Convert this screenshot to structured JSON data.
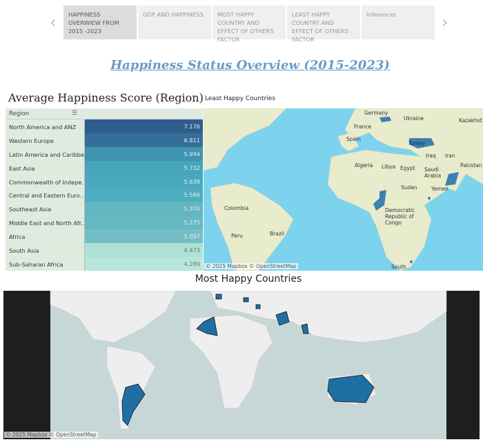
{
  "nav": {
    "prev": "‹",
    "next": "›",
    "tabs": [
      {
        "label": "HAPPINESS OVERWIEW FROM 2015 -2023",
        "active": true
      },
      {
        "label": "GDP AND HAPPINESS",
        "active": false
      },
      {
        "label": "MOST HAPPY COUNTRY AND EFFECT OF OTHERS FACTOR",
        "active": false
      },
      {
        "label": "LEAST HAPPY COUNTRY AND EFFECT OF OTHERS FACTOR",
        "active": false
      },
      {
        "label": "Inferences",
        "active": false
      }
    ]
  },
  "page_title": "Happiness Status Overview (2015-2023)",
  "region_table": {
    "title": "Average Happiness Score (Region)",
    "column_header": "Region",
    "rows": [
      {
        "region": "North America and ANZ",
        "score": "7.176",
        "color": "#2f5d8c"
      },
      {
        "region": "Western Europe",
        "score": "6.811",
        "color": "#356e99"
      },
      {
        "region": "Latin America and Caribbe..",
        "score": "5.994",
        "color": "#3f94b0"
      },
      {
        "region": "East Asia",
        "score": "5.732",
        "color": "#47a5bc"
      },
      {
        "region": "Commonwealth of Indepe..",
        "score": "5.639",
        "color": "#4aa9be"
      },
      {
        "region": "Central and Eastern Euro..",
        "score": "5.586",
        "color": "#4eacbf"
      },
      {
        "region": "Southeast Asia",
        "score": "5.370",
        "color": "#62b5c1"
      },
      {
        "region": "Middle East and North Afr..",
        "score": "5.275",
        "color": "#66b8c3"
      },
      {
        "region": "Africa",
        "score": "5.057",
        "color": "#74bfc6"
      },
      {
        "region": "South Asia",
        "score": "4.473",
        "color": "#ade0d6"
      },
      {
        "region": "Sub-Saharan Africa",
        "score": "4.289",
        "color": "#b8e6da"
      }
    ]
  },
  "least_map": {
    "title": "Least Happy Countries",
    "attribution": "© 2025 Mapbox © OpenStreetMap",
    "labels": [
      "Germany",
      "France",
      "Ukraine",
      "Kazakhst",
      "Spain",
      "Turkey",
      "Iraq",
      "Iran",
      "Algeria",
      "Libya",
      "Egypt",
      "Saudi Arabia",
      "Pakistan",
      "Yemen",
      "Sudan",
      "Colombia",
      "Peru",
      "Brazil",
      "Democratic Republic of Congo",
      "South"
    ],
    "ocean_color": "#7dd3ee",
    "land_color": "#e8eccd",
    "highlight_color": "#3b82b0"
  },
  "most_map": {
    "title": "Most Happy Countries",
    "attribution": "© 2025 Mapbox © OpenStreetMap",
    "ocean_color": "#c7d6d6",
    "land_color": "#eeeeee",
    "highlight_color": "#1f6fa5"
  }
}
